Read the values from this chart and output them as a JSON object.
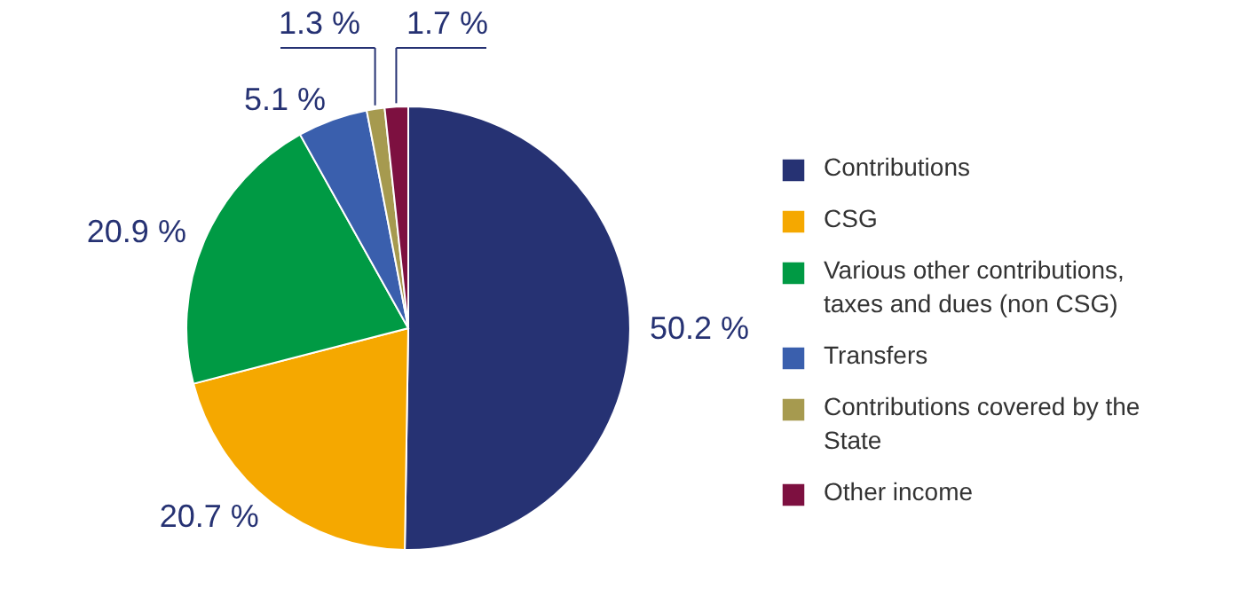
{
  "chart_data": {
    "type": "pie",
    "categories": [
      "Contributions",
      "CSG",
      "Various other contributions, taxes and dues (non CSG)",
      "Transfers",
      "Contributions covered by the State",
      "Other income"
    ],
    "values": [
      50.2,
      20.7,
      20.9,
      5.1,
      1.3,
      1.7
    ],
    "value_labels": [
      "50.2 %",
      "20.7 %",
      "20.9 %",
      "5.1 %",
      "1.3 %",
      "1.7 %"
    ],
    "colors": [
      "#263273",
      "#f5a800",
      "#009a44",
      "#3a5fad",
      "#a69a4f",
      "#7d1040"
    ],
    "legend": "right"
  }
}
